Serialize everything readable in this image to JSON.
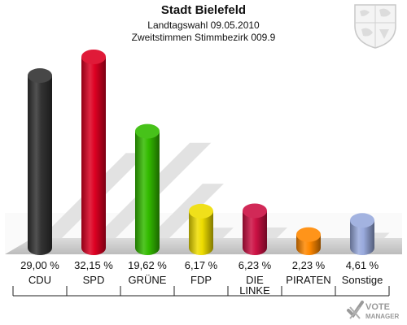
{
  "header": {
    "title": "Stadt Bielefeld",
    "subtitle": "Landtagswahl 09.05.2010",
    "subtitle2": "Zweitstimmen Stimmbezirk 009.9"
  },
  "chart_data": {
    "type": "bar",
    "title": "Stadt Bielefeld",
    "categories": [
      "CDU",
      "SPD",
      "GRÜNE",
      "FDP",
      "DIE LINKE",
      "PIRATEN",
      "Sonstige"
    ],
    "category_lines": [
      [
        "CDU"
      ],
      [
        "SPD"
      ],
      [
        "GRÜNE"
      ],
      [
        "FDP"
      ],
      [
        "DIE",
        "LINKE"
      ],
      [
        "PIRATEN"
      ],
      [
        "Sonstige"
      ]
    ],
    "values": [
      29.0,
      32.15,
      19.62,
      6.17,
      6.23,
      2.23,
      4.61
    ],
    "value_labels": [
      "29,00 %",
      "32,15 %",
      "19,62 %",
      "6,17 %",
      "6,23 %",
      "2,23 %",
      "4,61 %"
    ],
    "colors": [
      "#333333",
      "#dd0022",
      "#33bb00",
      "#eedd00",
      "#cc1144",
      "#ff8800",
      "#99aadd"
    ],
    "ylim": [
      0,
      32.15
    ],
    "grid": false,
    "legend": "none"
  },
  "logo": {
    "line1": "VOTE",
    "line2": "MANAGER"
  }
}
